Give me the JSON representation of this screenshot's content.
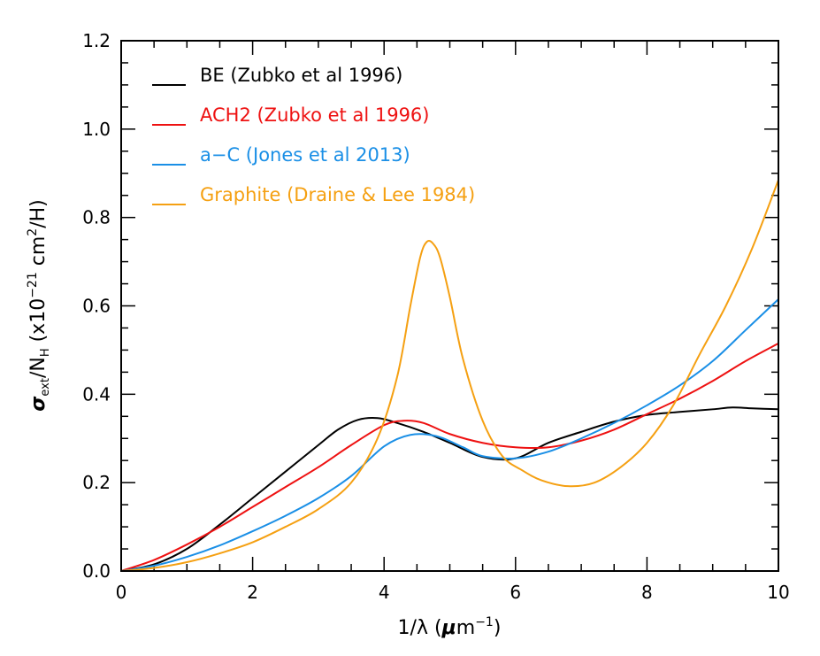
{
  "chart_data": {
    "type": "line",
    "title": "",
    "xlabel": {
      "prefix": "1/λ (",
      "mu": "μ",
      "base": "m",
      "sup": "−1",
      "suffix": ")"
    },
    "ylabel": {
      "sigma": "σ",
      "sub1": "ext",
      "mid": "/N",
      "sub2": "H",
      "rest": " (x10",
      "sup1": "−21",
      "unit": " cm",
      "sup2": "2",
      "end": "/H)"
    },
    "xlim": [
      0,
      10
    ],
    "ylim": [
      0,
      1.2
    ],
    "x_ticks": [
      0,
      2,
      4,
      6,
      8,
      10
    ],
    "x_tick_labels": [
      "0",
      "2",
      "4",
      "6",
      "8",
      "10"
    ],
    "y_ticks": [
      0.0,
      0.2,
      0.4,
      0.6,
      0.8,
      1.0,
      1.2
    ],
    "y_tick_labels": [
      "0.0",
      "0.2",
      "0.4",
      "0.6",
      "0.8",
      "1.0",
      "1.2"
    ],
    "legend_position": "top-left",
    "series": [
      {
        "name": "BE (Zubko et al 1996)",
        "color": "#000000",
        "x": [
          0,
          0.5,
          1.0,
          1.5,
          2.0,
          2.5,
          3.0,
          3.3,
          3.6,
          3.9,
          4.2,
          4.6,
          5.0,
          5.5,
          6.0,
          6.5,
          7.0,
          7.5,
          8.0,
          8.5,
          9.0,
          9.3,
          9.6,
          10.0
        ],
        "y": [
          0.0,
          0.015,
          0.05,
          0.105,
          0.165,
          0.225,
          0.285,
          0.32,
          0.342,
          0.346,
          0.335,
          0.315,
          0.29,
          0.258,
          0.255,
          0.29,
          0.315,
          0.338,
          0.353,
          0.36,
          0.366,
          0.37,
          0.368,
          0.366
        ]
      },
      {
        "name": "ACH2 (Zubko et al 1996)",
        "color": "#ee1111",
        "x": [
          0,
          0.5,
          1.0,
          1.5,
          2.0,
          2.5,
          3.0,
          3.5,
          4.0,
          4.3,
          4.6,
          5.0,
          5.5,
          6.0,
          6.5,
          7.0,
          7.5,
          8.0,
          8.5,
          9.0,
          9.5,
          10.0
        ],
        "y": [
          0.0,
          0.025,
          0.06,
          0.1,
          0.145,
          0.19,
          0.235,
          0.285,
          0.33,
          0.34,
          0.335,
          0.31,
          0.29,
          0.28,
          0.28,
          0.295,
          0.32,
          0.355,
          0.39,
          0.43,
          0.475,
          0.515
        ]
      },
      {
        "name": "a−C (Jones et al 2013)",
        "color": "#1a8fe6",
        "x": [
          0,
          0.5,
          1.0,
          1.5,
          2.0,
          2.5,
          3.0,
          3.5,
          4.0,
          4.4,
          4.8,
          5.2,
          5.5,
          6.0,
          6.5,
          7.0,
          7.5,
          8.0,
          8.5,
          9.0,
          9.5,
          10.0
        ],
        "y": [
          0.0,
          0.012,
          0.032,
          0.058,
          0.09,
          0.125,
          0.165,
          0.215,
          0.282,
          0.308,
          0.305,
          0.28,
          0.26,
          0.255,
          0.27,
          0.3,
          0.335,
          0.375,
          0.42,
          0.475,
          0.545,
          0.615
        ]
      },
      {
        "name": "Graphite (Draine & Lee 1984)",
        "color": "#f5a012",
        "x": [
          0,
          0.5,
          1.0,
          1.5,
          2.0,
          2.5,
          3.0,
          3.5,
          3.9,
          4.2,
          4.4,
          4.55,
          4.65,
          4.75,
          4.85,
          5.0,
          5.2,
          5.5,
          5.8,
          6.1,
          6.4,
          6.8,
          7.2,
          7.6,
          8.0,
          8.4,
          8.8,
          9.2,
          9.6,
          10.0
        ],
        "y": [
          0.0,
          0.007,
          0.02,
          0.04,
          0.065,
          0.1,
          0.14,
          0.2,
          0.3,
          0.44,
          0.6,
          0.71,
          0.745,
          0.74,
          0.71,
          0.62,
          0.48,
          0.34,
          0.26,
          0.228,
          0.205,
          0.192,
          0.2,
          0.235,
          0.29,
          0.375,
          0.49,
          0.6,
          0.73,
          0.885
        ]
      }
    ]
  }
}
